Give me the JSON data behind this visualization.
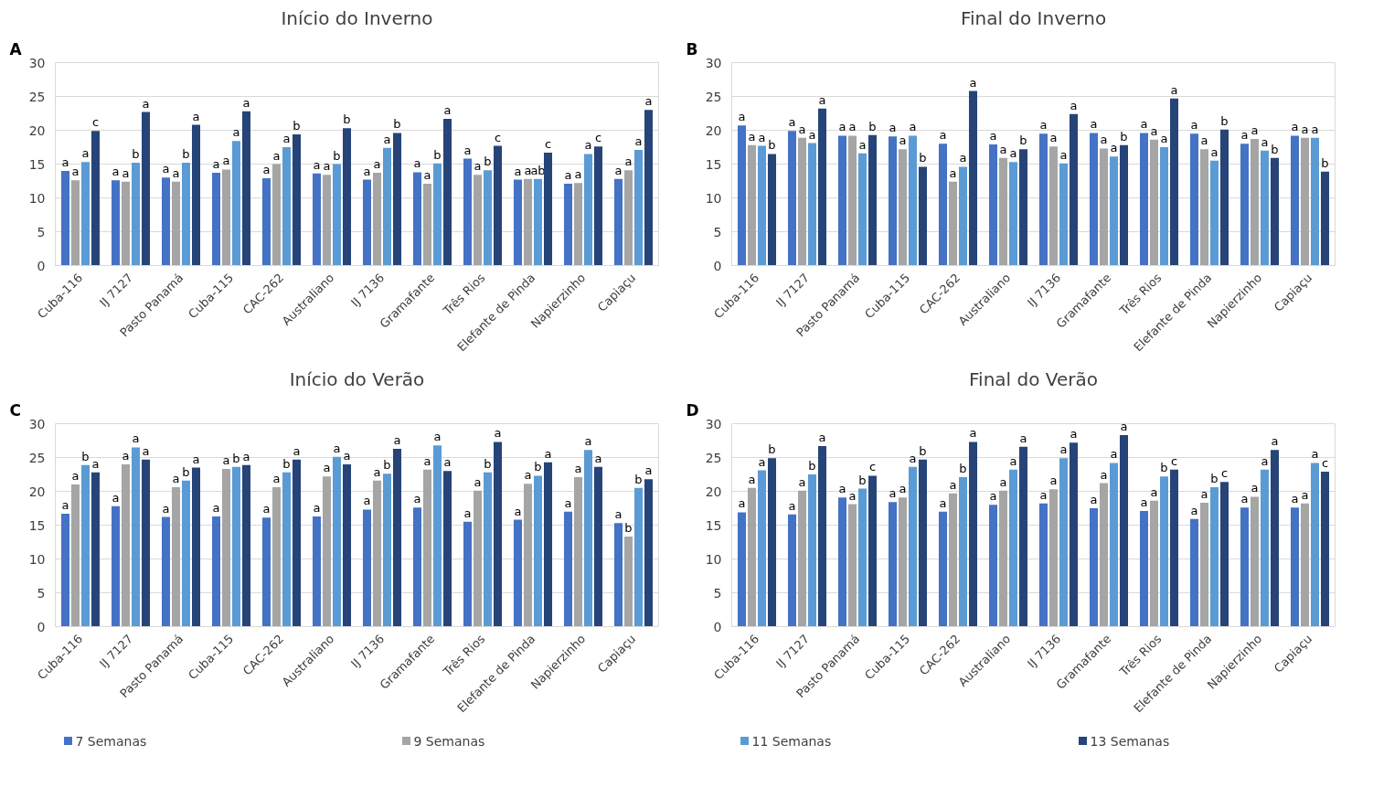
{
  "chart_data": [
    {
      "type": "bar",
      "title": "Início do Inverno",
      "annotations": [
        "A"
      ],
      "categories": [
        "Cuba-116",
        "IJ 7127",
        "Pasto Panamá",
        "Cuba-115",
        "CAC-262",
        "Australiano",
        "IJ 7136",
        "Gramafante",
        "Três Rios",
        "Elefante de Pinda",
        "Napierzinho",
        "Capiaçu"
      ],
      "ylim": [
        0,
        30
      ],
      "yticks": [
        0,
        5,
        10,
        15,
        20,
        25,
        30
      ],
      "grid": "y",
      "legend": false,
      "series": [
        {
          "color": "#4472c4",
          "values": [
            14.0,
            12.6,
            13.0,
            13.7,
            12.9,
            13.6,
            12.7,
            13.8,
            15.8,
            12.7,
            12.1,
            12.8
          ],
          "value_labels": [
            "a",
            "a",
            "a",
            "a",
            "a",
            "a",
            "a",
            "a",
            "a",
            "a",
            "a",
            "a"
          ]
        },
        {
          "color": "#a5a5a5",
          "values": [
            12.6,
            12.4,
            12.4,
            14.2,
            15.0,
            13.4,
            13.7,
            12.1,
            13.4,
            12.8,
            12.2,
            14.1
          ],
          "value_labels": [
            "a",
            "a",
            "a",
            "a",
            "a",
            "a",
            "a",
            "a",
            "a",
            "a",
            "a",
            "a"
          ]
        },
        {
          "color": "#5b9bd5",
          "values": [
            15.3,
            15.2,
            15.2,
            18.4,
            17.5,
            15.0,
            17.4,
            15.1,
            14.1,
            12.8,
            16.5,
            17.1
          ],
          "value_labels": [
            "a",
            "b",
            "b",
            "a",
            "a",
            "b",
            "a",
            "b",
            "b",
            "ab",
            "a",
            "a"
          ]
        },
        {
          "color": "#264478",
          "values": [
            19.9,
            22.7,
            20.8,
            22.8,
            19.4,
            20.3,
            19.6,
            21.7,
            17.7,
            16.7,
            17.6,
            23.0
          ],
          "value_labels": [
            "c",
            "a",
            "a",
            "a",
            "b",
            "b",
            "b",
            "a",
            "c",
            "c",
            "c",
            "a"
          ]
        }
      ]
    },
    {
      "type": "bar",
      "title": "Final do Inverno",
      "annotations": [
        "B"
      ],
      "categories": [
        "Cuba-116",
        "IJ 7127",
        "Pasto Panamá",
        "Cuba-115",
        "CAC-262",
        "Australiano",
        "IJ 7136",
        "Gramafante",
        "Três Rios",
        "Elefante de Pinda",
        "Napierzinho",
        "Capiaçu"
      ],
      "ylim": [
        0,
        30
      ],
      "yticks": [
        0,
        5,
        10,
        15,
        20,
        25,
        30
      ],
      "grid": "y",
      "legend": false,
      "series": [
        {
          "color": "#4472c4",
          "values": [
            20.7,
            19.9,
            19.2,
            19.1,
            18.0,
            17.9,
            19.5,
            19.6,
            19.6,
            19.5,
            18.0,
            19.2
          ],
          "value_labels": [
            "a",
            "a",
            "a",
            "a",
            "a",
            "a",
            "a",
            "a",
            "a",
            "a",
            "a",
            "a"
          ]
        },
        {
          "color": "#a5a5a5",
          "values": [
            17.8,
            18.9,
            19.2,
            17.2,
            12.4,
            15.9,
            17.6,
            17.3,
            18.6,
            17.2,
            18.7,
            18.9
          ],
          "value_labels": [
            "a",
            "a",
            "a",
            "a",
            "a",
            "a",
            "a",
            "a",
            "a",
            "a",
            "a",
            "a"
          ]
        },
        {
          "color": "#5b9bd5",
          "values": [
            17.7,
            18.1,
            16.6,
            19.2,
            14.6,
            15.3,
            15.1,
            16.1,
            17.5,
            15.5,
            17.0,
            18.9
          ],
          "value_labels": [
            "a",
            "a",
            "a",
            "a",
            "a",
            "a",
            "a",
            "a",
            "a",
            "a",
            "a",
            "a"
          ]
        },
        {
          "color": "#264478",
          "values": [
            16.5,
            23.2,
            19.3,
            14.6,
            25.8,
            17.2,
            22.4,
            17.8,
            24.7,
            20.1,
            15.9,
            13.9
          ],
          "value_labels": [
            "b",
            "a",
            "b",
            "b",
            "a",
            "b",
            "a",
            "b",
            "a",
            "b",
            "b",
            "b"
          ]
        }
      ]
    },
    {
      "type": "bar",
      "title": "Início do Verão",
      "annotations": [
        "C"
      ],
      "categories": [
        "Cuba-116",
        "IJ 7127",
        "Pasto Panamá",
        "Cuba-115",
        "CAC-262",
        "Australiano",
        "IJ 7136",
        "Gramafante",
        "Três Rios",
        "Elefante de Pinda",
        "Napierzinho",
        "Capiaçu"
      ],
      "ylim": [
        0,
        30
      ],
      "yticks": [
        0,
        5,
        10,
        15,
        20,
        25,
        30
      ],
      "grid": "y",
      "legend": "bottom",
      "series": [
        {
          "name": "7 Semanas",
          "color": "#4472c4",
          "values": [
            16.7,
            17.8,
            16.2,
            16.3,
            16.1,
            16.3,
            17.3,
            17.6,
            15.5,
            15.8,
            17.0,
            15.3
          ],
          "value_labels": [
            "a",
            "a",
            "a",
            "a",
            "a",
            "a",
            "a",
            "a",
            "a",
            "a",
            "a",
            "a"
          ]
        },
        {
          "name": "9 Semanas",
          "color": "#a5a5a5",
          "values": [
            21.0,
            24.0,
            20.6,
            23.3,
            20.6,
            22.2,
            21.6,
            23.2,
            20.1,
            21.1,
            22.1,
            13.3
          ],
          "value_labels": [
            "a",
            "a",
            "a",
            "a",
            "a",
            "a",
            "a",
            "a",
            "a",
            "a",
            "a",
            "b"
          ]
        },
        {
          "name": "11 Semanas",
          "color": "#5b9bd5",
          "values": [
            23.9,
            26.5,
            21.6,
            23.6,
            22.8,
            25.1,
            22.6,
            26.8,
            22.8,
            22.3,
            26.1,
            20.5
          ],
          "value_labels": [
            "b",
            "a",
            "b",
            "b",
            "b",
            "a",
            "b",
            "a",
            "b",
            "b",
            "a",
            "b"
          ]
        },
        {
          "name": "13 Semanas",
          "color": "#264478",
          "values": [
            22.8,
            24.7,
            23.5,
            23.9,
            24.7,
            24.0,
            26.3,
            23.0,
            27.3,
            24.3,
            23.6,
            21.8
          ],
          "value_labels": [
            "a",
            "a",
            "a",
            "a",
            "a",
            "a",
            "a",
            "a",
            "a",
            "a",
            "a",
            "a"
          ]
        }
      ]
    },
    {
      "type": "bar",
      "title": "Final do Verão",
      "annotations": [
        "D"
      ],
      "categories": [
        "Cuba-116",
        "IJ 7127",
        "Pasto Panamá",
        "Cuba-115",
        "CAC-262",
        "Australiano",
        "IJ 7136",
        "Gramafante",
        "Três Rios",
        "Elefante de Pinda",
        "Napierzinho",
        "Capiaçu"
      ],
      "ylim": [
        0,
        30
      ],
      "yticks": [
        0,
        5,
        10,
        15,
        20,
        25,
        30
      ],
      "grid": "y",
      "legend": false,
      "series": [
        {
          "color": "#4472c4",
          "values": [
            16.9,
            16.6,
            19.1,
            18.4,
            17.0,
            18.0,
            18.2,
            17.5,
            17.1,
            15.9,
            17.6,
            17.6
          ],
          "value_labels": [
            "a",
            "a",
            "a",
            "a",
            "a",
            "a",
            "a",
            "a",
            "a",
            "a",
            "a",
            "a"
          ]
        },
        {
          "color": "#a5a5a5",
          "values": [
            20.5,
            20.1,
            18.1,
            19.1,
            19.7,
            20.1,
            20.3,
            21.2,
            18.6,
            18.3,
            19.2,
            18.2
          ],
          "value_labels": [
            "a",
            "a",
            "a",
            "a",
            "a",
            "a",
            "a",
            "a",
            "a",
            "a",
            "a",
            "a"
          ]
        },
        {
          "color": "#5b9bd5",
          "values": [
            23.1,
            22.5,
            20.4,
            23.6,
            22.1,
            23.2,
            24.9,
            24.2,
            22.2,
            20.6,
            23.2,
            24.2
          ],
          "value_labels": [
            "a",
            "b",
            "b",
            "a",
            "b",
            "a",
            "a",
            "a",
            "b",
            "b",
            "a",
            "a"
          ]
        },
        {
          "color": "#264478",
          "values": [
            24.9,
            26.7,
            22.3,
            24.7,
            27.3,
            26.6,
            27.2,
            28.3,
            23.2,
            21.4,
            26.1,
            22.9
          ],
          "value_labels": [
            "b",
            "a",
            "c",
            "b",
            "a",
            "a",
            "a",
            "a",
            "c",
            "c",
            "a",
            "c"
          ]
        }
      ]
    }
  ]
}
